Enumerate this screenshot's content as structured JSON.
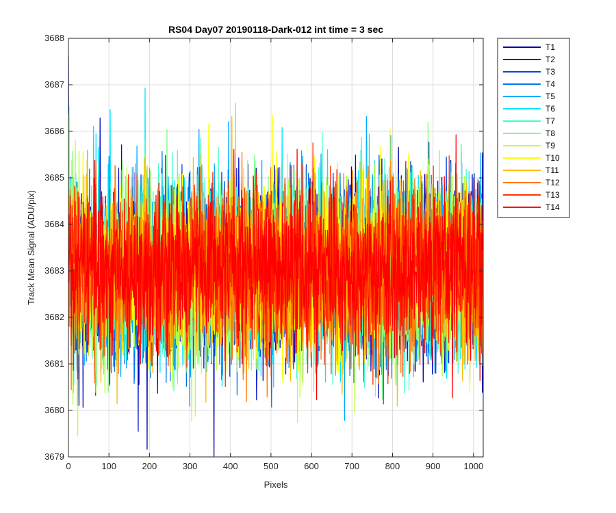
{
  "chart_data": {
    "type": "line",
    "title": "RS04 Day07 20190118-Dark-012 int time = 3 sec",
    "xlabel": "Pixels",
    "ylabel": "Track Mean Signal (ADU/pix)",
    "xlim": [
      0,
      1024
    ],
    "ylim": [
      3679,
      3688
    ],
    "xticks": [
      0,
      100,
      200,
      300,
      400,
      500,
      600,
      700,
      800,
      900,
      1000
    ],
    "yticks": [
      3679,
      3680,
      3681,
      3682,
      3683,
      3684,
      3685,
      3686,
      3687,
      3688
    ],
    "grid": true,
    "legend_position": "outside-right",
    "n_points": 1024,
    "series": [
      {
        "name": "T1",
        "color": "#0000aa",
        "mean": 3683.0,
        "spread": 0.95
      },
      {
        "name": "T2",
        "color": "#0011cc",
        "mean": 3683.0,
        "spread": 0.95
      },
      {
        "name": "T3",
        "color": "#0044dd",
        "mean": 3683.0,
        "spread": 0.95
      },
      {
        "name": "T4",
        "color": "#0077ee",
        "mean": 3683.0,
        "spread": 0.95
      },
      {
        "name": "T5",
        "color": "#00aaff",
        "mean": 3683.0,
        "spread": 0.95
      },
      {
        "name": "T6",
        "color": "#00e5ff",
        "mean": 3683.1,
        "spread": 0.95
      },
      {
        "name": "T7",
        "color": "#44ffcc",
        "mean": 3683.0,
        "spread": 0.95
      },
      {
        "name": "T8",
        "color": "#80ff80",
        "mean": 3683.0,
        "spread": 0.95
      },
      {
        "name": "T9",
        "color": "#bbff44",
        "mean": 3683.0,
        "spread": 0.95
      },
      {
        "name": "T10",
        "color": "#ffff00",
        "mean": 3683.0,
        "spread": 0.95
      },
      {
        "name": "T11",
        "color": "#ffbb00",
        "mean": 3683.0,
        "spread": 0.95
      },
      {
        "name": "T12",
        "color": "#ff7700",
        "mean": 3683.0,
        "spread": 0.9
      },
      {
        "name": "T13",
        "color": "#ff3300",
        "mean": 3683.0,
        "spread": 0.9
      },
      {
        "name": "T14",
        "color": "#ff0000",
        "mean": 3683.0,
        "spread": 0.85
      }
    ]
  }
}
